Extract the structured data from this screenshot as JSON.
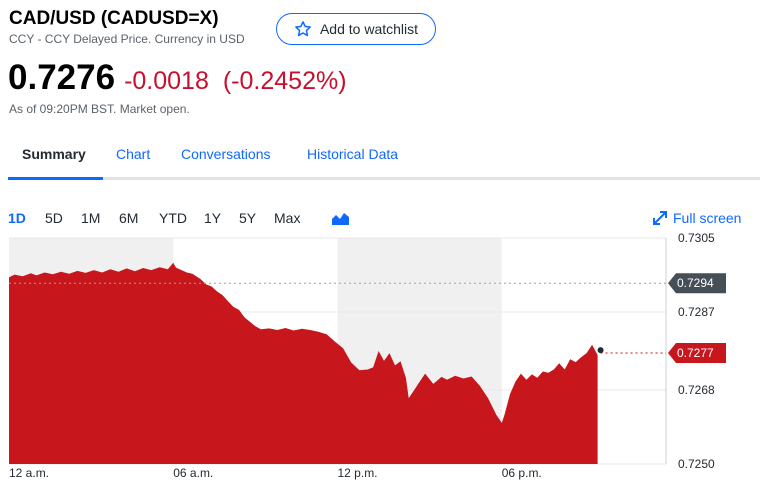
{
  "header": {
    "title": "CAD/USD (CADUSD=X)",
    "subtitle": "CCY - CCY Delayed Price. Currency in USD",
    "watchlist_label": "Add to watchlist"
  },
  "quote": {
    "price": "0.7276",
    "change": "-0.0018",
    "change_pct": "(-0.2452%)",
    "as_of": "As of 09:20PM BST. Market open."
  },
  "tabs": [
    {
      "label": "Summary",
      "active": true
    },
    {
      "label": "Chart"
    },
    {
      "label": "Conversations"
    },
    {
      "label": "Historical Data"
    }
  ],
  "ranges": [
    {
      "label": "1D",
      "active": true
    },
    {
      "label": "5D"
    },
    {
      "label": "1M"
    },
    {
      "label": "6M"
    },
    {
      "label": "YTD"
    },
    {
      "label": "1Y"
    },
    {
      "label": "5Y"
    },
    {
      "label": "Max"
    }
  ],
  "chart_type_icon": "mountain-chart-icon",
  "fullscreen": {
    "label": "Full screen",
    "icon": "expand-icon"
  },
  "colors": {
    "accent": "#0f69ff",
    "negative": "#c8102e",
    "area_fill": "#c8161d",
    "prev_close_tag": "#464e56",
    "shade": "#f0f0f0"
  },
  "chart_data": {
    "type": "area",
    "ylim": [
      0.725,
      0.7305
    ],
    "xlim": [
      0,
      24
    ],
    "y_ticks": [
      {
        "value": 0.7305,
        "label": "0.7305"
      },
      {
        "value": 0.7287,
        "label": "0.7287"
      },
      {
        "value": 0.7268,
        "label": "0.7268"
      },
      {
        "value": 0.725,
        "label": "0.7250"
      }
    ],
    "x_ticks": [
      {
        "value": 0,
        "label": "12 a.m."
      },
      {
        "value": 6,
        "label": "06 a.m."
      },
      {
        "value": 12,
        "label": "12 p.m."
      },
      {
        "value": 18,
        "label": "06 p.m."
      }
    ],
    "shaded_ranges": [
      [
        0,
        6
      ],
      [
        12,
        18
      ]
    ],
    "previous_close": {
      "value": 0.7294,
      "label": "0.7294"
    },
    "current": {
      "value": 0.7277,
      "label": "0.7277"
    },
    "series": [
      {
        "x": [
          0.0,
          0.2,
          0.5,
          0.8,
          1.0,
          1.3,
          1.6,
          1.9,
          2.2,
          2.5,
          2.8,
          3.1,
          3.4,
          3.7,
          4.0,
          4.3,
          4.6,
          4.9,
          5.2,
          5.5,
          5.8,
          6.0,
          6.1,
          6.3,
          6.5,
          6.7,
          7.0,
          7.2,
          7.4,
          7.6,
          7.8,
          8.0,
          8.2,
          8.4,
          8.6,
          8.8,
          9.0,
          9.2,
          9.5,
          9.8,
          10.1,
          10.4,
          10.7,
          11.0,
          11.3,
          11.6,
          11.9,
          12.2,
          12.5,
          12.8,
          13.1,
          13.3,
          13.5,
          13.7,
          13.9,
          14.1,
          14.3,
          14.5,
          14.6,
          14.8,
          15.0,
          15.2,
          15.5,
          15.8,
          16.0,
          16.3,
          16.6,
          16.9,
          17.2,
          17.5,
          17.8,
          18.0,
          18.1,
          18.3,
          18.5,
          18.7,
          18.9,
          19.1,
          19.3,
          19.5,
          19.7,
          19.9,
          20.1,
          20.3,
          20.5,
          20.7,
          20.9,
          21.1,
          21.3,
          21.5
        ],
        "y": [
          0.72954,
          0.72961,
          0.72957,
          0.72964,
          0.72959,
          0.72966,
          0.72962,
          0.72968,
          0.72963,
          0.7297,
          0.72965,
          0.72972,
          0.72966,
          0.72974,
          0.72968,
          0.72976,
          0.72969,
          0.72977,
          0.72972,
          0.72979,
          0.72974,
          0.7299,
          0.72978,
          0.72972,
          0.72966,
          0.72963,
          0.7295,
          0.72937,
          0.72932,
          0.7292,
          0.72911,
          0.72896,
          0.72882,
          0.72875,
          0.72857,
          0.72846,
          0.72835,
          0.72828,
          0.7283,
          0.72826,
          0.72831,
          0.72825,
          0.72829,
          0.72826,
          0.72822,
          0.72816,
          0.72798,
          0.72782,
          0.72747,
          0.72728,
          0.7273,
          0.72735,
          0.72775,
          0.72751,
          0.7277,
          0.7274,
          0.7275,
          0.7271,
          0.7266,
          0.7268,
          0.727,
          0.7272,
          0.72695,
          0.72712,
          0.72705,
          0.72715,
          0.72708,
          0.72713,
          0.7269,
          0.7266,
          0.7262,
          0.726,
          0.7262,
          0.7267,
          0.727,
          0.7272,
          0.72705,
          0.72718,
          0.7271,
          0.72725,
          0.72722,
          0.7273,
          0.72745,
          0.7273,
          0.72755,
          0.72748,
          0.7276,
          0.7277,
          0.7279,
          0.72765
        ]
      }
    ]
  }
}
